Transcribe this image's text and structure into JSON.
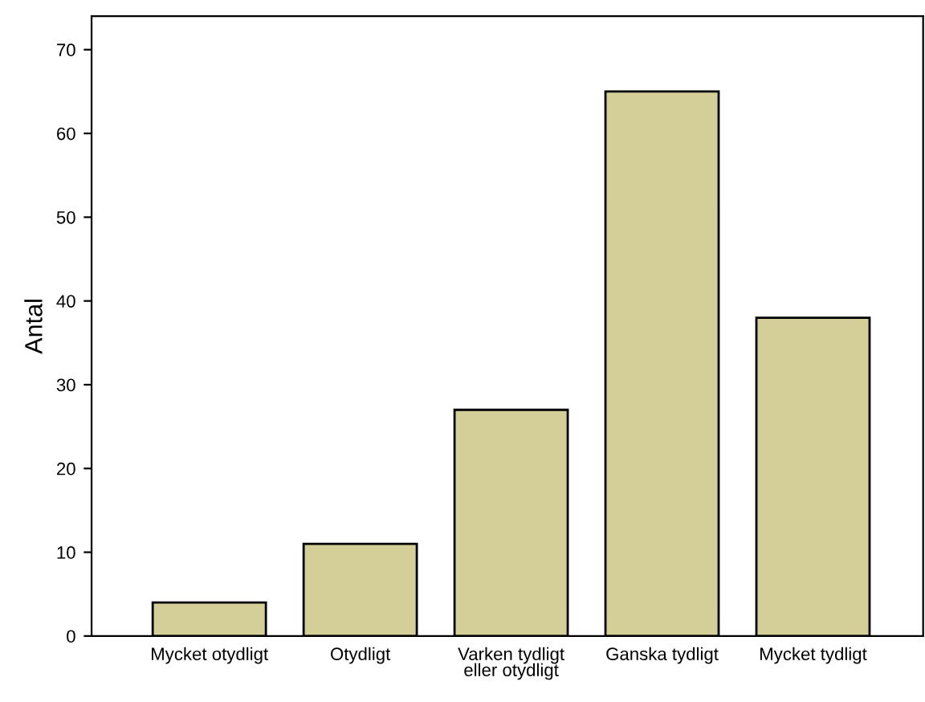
{
  "chart_data": {
    "type": "bar",
    "ylabel": "Antal",
    "categories": [
      "Mycket otydligt",
      "Otydligt",
      "Varken tydligt\neller otydligt",
      "Ganska tydligt",
      "Mycket tydligt"
    ],
    "values": [
      4,
      11,
      27,
      65,
      38
    ],
    "color": "#d4cf98",
    "ylim": [
      0,
      74
    ],
    "yticks": [
      0,
      10,
      20,
      30,
      40,
      50,
      60,
      70
    ],
    "grid": false,
    "legend": false
  }
}
